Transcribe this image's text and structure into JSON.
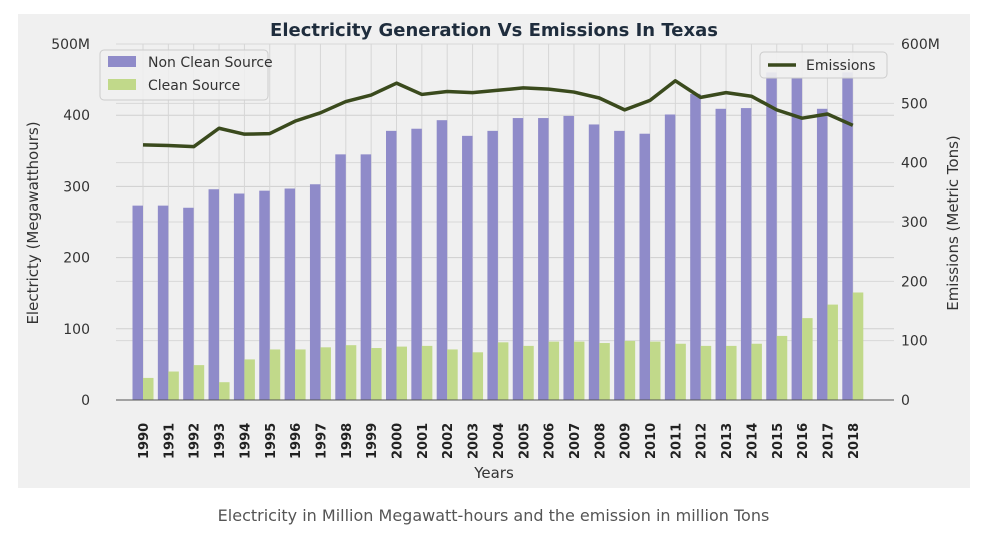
{
  "caption": "Electricity in Million Megawatt-hours and the emission in million Tons",
  "chart_data": {
    "type": "bar",
    "title": "Electricity Generation Vs Emissions In Texas",
    "xlabel": "Years",
    "ylabel": "Electricty (Megawatthours)",
    "y2label": "Emissions (Metric Tons)",
    "ylim": [
      0,
      500
    ],
    "y2lim": [
      0,
      600
    ],
    "yticks": [
      "0",
      "100",
      "200",
      "300",
      "400",
      "500M"
    ],
    "y2ticks": [
      "0",
      "100",
      "200",
      "300",
      "400",
      "500",
      "600M"
    ],
    "grid": true,
    "categories": [
      "1990",
      "1991",
      "1992",
      "1993",
      "1994",
      "1995",
      "1996",
      "1997",
      "1998",
      "1999",
      "2000",
      "2001",
      "2002",
      "2003",
      "2004",
      "2005",
      "2006",
      "2007",
      "2008",
      "2009",
      "2010",
      "2011",
      "2012",
      "2013",
      "2014",
      "2015",
      "2016",
      "2017",
      "2018"
    ],
    "series": [
      {
        "name": "Non Clean Source",
        "type": "bar",
        "axis": "left",
        "color": "#8f8bc9",
        "values": [
          273,
          273,
          270,
          296,
          290,
          294,
          297,
          303,
          345,
          345,
          378,
          381,
          393,
          371,
          378,
          396,
          396,
          399,
          387,
          378,
          374,
          401,
          430,
          409,
          410,
          460,
          452,
          409,
          460
        ]
      },
      {
        "name": "Clean Source",
        "type": "bar",
        "axis": "left",
        "color": "#c1d98a",
        "values": [
          31,
          40,
          49,
          25,
          57,
          71,
          71,
          74,
          77,
          73,
          75,
          76,
          71,
          67,
          81,
          76,
          82,
          82,
          80,
          83,
          82,
          79,
          76,
          76,
          79,
          90,
          115,
          134,
          151
        ]
      },
      {
        "name": "Emissions",
        "type": "line",
        "axis": "right",
        "color": "#3a4a1d",
        "values": [
          430,
          429,
          427,
          458,
          448,
          449,
          470,
          484,
          503,
          514,
          534,
          515,
          520,
          518,
          522,
          526,
          524,
          519,
          509,
          489,
          505,
          538,
          510,
          518,
          512,
          489,
          475,
          482,
          463
        ]
      }
    ],
    "legend_left": "top-left",
    "legend_right": "top-right"
  }
}
